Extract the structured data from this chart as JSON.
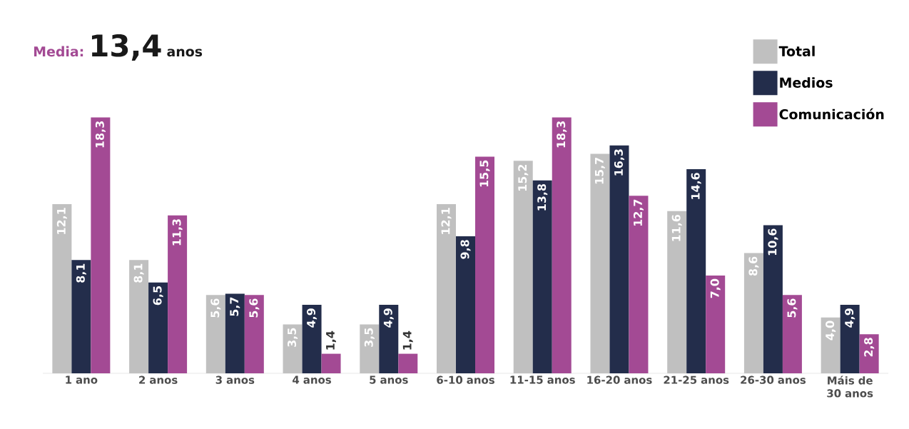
{
  "chart_data": {
    "type": "bar",
    "annotations": [
      "Media:",
      "13,4",
      "anos"
    ],
    "categories": [
      "1 ano",
      "2 anos",
      "3 anos",
      "4 anos",
      "5 anos",
      "6-10 anos",
      "11-15 anos",
      "16-20 anos",
      "21-25 anos",
      "26-30 anos",
      "Máis de 30 anos"
    ],
    "series": [
      {
        "name": "Total",
        "color": "#c0c0c0",
        "values": [
          12.1,
          8.1,
          5.6,
          3.5,
          3.5,
          12.1,
          15.2,
          15.7,
          11.6,
          8.6,
          4.0
        ],
        "value_labels": [
          "12,1",
          "8,1",
          "5,6",
          "3,5",
          "3,5",
          "12,1",
          "15,2",
          "15,7",
          "11,6",
          "8,6",
          "4,0"
        ]
      },
      {
        "name": "Medios",
        "color": "#232d4b",
        "values": [
          8.1,
          6.5,
          5.7,
          4.9,
          4.9,
          9.8,
          13.8,
          16.3,
          14.6,
          10.6,
          4.9
        ],
        "value_labels": [
          "8,1",
          "6,5",
          "5,7",
          "4,9",
          "4,9",
          "9,8",
          "13,8",
          "16,3",
          "14,6",
          "10,6",
          "4,9"
        ]
      },
      {
        "name": "Comunicación",
        "color": "#a34a94",
        "values": [
          18.3,
          11.3,
          5.6,
          1.4,
          1.4,
          15.5,
          18.3,
          12.7,
          7.0,
          5.6,
          2.8
        ],
        "value_labels": [
          "18,3",
          "11,3",
          "5,6",
          "1,4",
          "1,4",
          "15,5",
          "18,3",
          "12,7",
          "7,0",
          "5,6",
          "2,8"
        ]
      }
    ],
    "ylim": [
      0,
      24
    ],
    "tick_labels": "x",
    "legend": "top right"
  }
}
